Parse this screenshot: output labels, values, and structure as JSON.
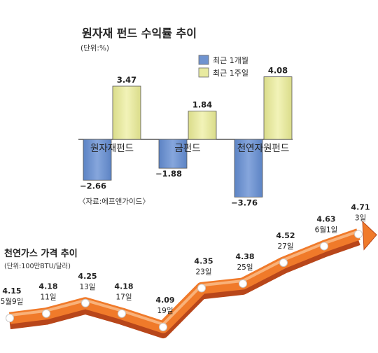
{
  "chart_data": [
    {
      "type": "bar",
      "title": "원자재 펀드 수익률 추이",
      "unit": "(단위:%)",
      "categories": [
        "원자재펀드",
        "금펀드",
        "천연자원펀드"
      ],
      "series": [
        {
          "name": "최근 1개월",
          "color": "#6f93cf",
          "values": [
            -2.66,
            -1.88,
            -3.76
          ]
        },
        {
          "name": "최근 1주일",
          "color": "#e8eaa0",
          "values": [
            3.47,
            1.84,
            4.08
          ]
        }
      ],
      "value_labels": {
        "month": [
          "−2.66",
          "−1.88",
          "−3.76"
        ],
        "week": [
          "3.47",
          "1.84",
          "4.08"
        ]
      },
      "source": "〈자료:에프앤가이드〉",
      "legend": "top-right"
    },
    {
      "type": "line",
      "title": "천연가스 가격 추이",
      "unit": "(단위:100만BTU/달러)",
      "color": "#f07a2a",
      "x": [
        "5월9일",
        "11일",
        "13일",
        "17일",
        "19일",
        "23일",
        "25일",
        "27일",
        "6월1일",
        "3일"
      ],
      "values": [
        4.15,
        4.18,
        4.25,
        4.18,
        4.09,
        4.35,
        4.38,
        4.52,
        4.63,
        4.71
      ],
      "value_labels": [
        "4.15",
        "4.18",
        "4.25",
        "4.18",
        "4.09",
        "4.35",
        "4.38",
        "4.52",
        "4.63",
        "4.71"
      ]
    }
  ]
}
